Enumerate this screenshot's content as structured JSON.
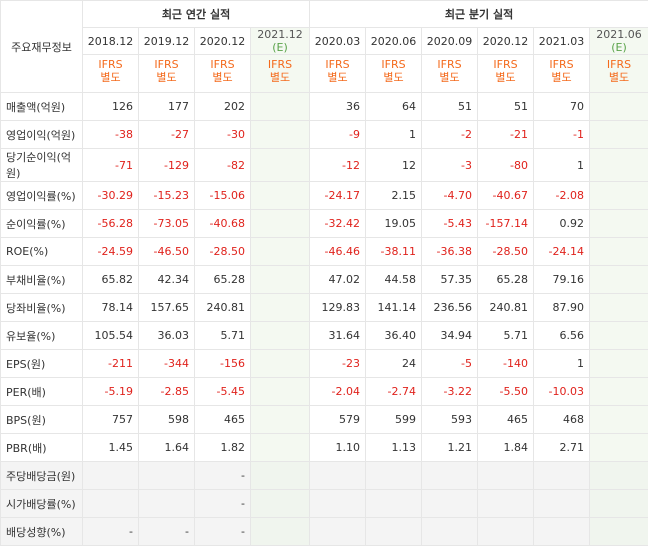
{
  "header": {
    "row_title": "주요재무정보",
    "annual_title": "최근 연간 실적",
    "quarter_title": "최근 분기 실적",
    "ifrs_top": "IFRS",
    "ifrs_bottom": "별도",
    "annual_periods": [
      "2018.12",
      "2019.12",
      "2020.12",
      "2021.12"
    ],
    "quarter_periods": [
      "2020.03",
      "2020.06",
      "2020.09",
      "2020.12",
      "2021.03",
      "2021.06"
    ],
    "estimate_mark": "(E)"
  },
  "rows": [
    {
      "label": "매출액(억원)",
      "values": [
        "126",
        "177",
        "202",
        "",
        "36",
        "64",
        "51",
        "51",
        "70",
        ""
      ]
    },
    {
      "label": "영업이익(억원)",
      "values": [
        "-38",
        "-27",
        "-30",
        "",
        "-9",
        "1",
        "-2",
        "-21",
        "-1",
        ""
      ]
    },
    {
      "label": "당기순이익(억원)",
      "values": [
        "-71",
        "-129",
        "-82",
        "",
        "-12",
        "12",
        "-3",
        "-80",
        "1",
        ""
      ]
    },
    {
      "label": "영업이익률(%)",
      "values": [
        "-30.29",
        "-15.23",
        "-15.06",
        "",
        "-24.17",
        "2.15",
        "-4.70",
        "-40.67",
        "-2.08",
        ""
      ]
    },
    {
      "label": "순이익률(%)",
      "values": [
        "-56.28",
        "-73.05",
        "-40.68",
        "",
        "-32.42",
        "19.05",
        "-5.43",
        "-157.14",
        "0.92",
        ""
      ]
    },
    {
      "label": "ROE(%)",
      "values": [
        "-24.59",
        "-46.50",
        "-28.50",
        "",
        "-46.46",
        "-38.11",
        "-36.38",
        "-28.50",
        "-24.14",
        ""
      ]
    },
    {
      "label": "부채비율(%)",
      "values": [
        "65.82",
        "42.34",
        "65.28",
        "",
        "47.02",
        "44.58",
        "57.35",
        "65.28",
        "79.16",
        ""
      ]
    },
    {
      "label": "당좌비율(%)",
      "values": [
        "78.14",
        "157.65",
        "240.81",
        "",
        "129.83",
        "141.14",
        "236.56",
        "240.81",
        "87.90",
        ""
      ]
    },
    {
      "label": "유보율(%)",
      "values": [
        "105.54",
        "36.03",
        "5.71",
        "",
        "31.64",
        "36.40",
        "34.94",
        "5.71",
        "6.56",
        ""
      ]
    },
    {
      "label": "EPS(원)",
      "values": [
        "-211",
        "-344",
        "-156",
        "",
        "-23",
        "24",
        "-5",
        "-140",
        "1",
        ""
      ]
    },
    {
      "label": "PER(배)",
      "values": [
        "-5.19",
        "-2.85",
        "-5.45",
        "",
        "-2.04",
        "-2.74",
        "-3.22",
        "-5.50",
        "-10.03",
        ""
      ]
    },
    {
      "label": "BPS(원)",
      "values": [
        "757",
        "598",
        "465",
        "",
        "579",
        "599",
        "593",
        "465",
        "468",
        ""
      ]
    },
    {
      "label": "PBR(배)",
      "values": [
        "1.45",
        "1.64",
        "1.82",
        "",
        "1.10",
        "1.13",
        "1.21",
        "1.84",
        "2.71",
        ""
      ]
    },
    {
      "label": "주당배당금(원)",
      "values": [
        "",
        "",
        "-",
        "",
        "",
        "",
        "",
        "",
        "",
        ""
      ]
    },
    {
      "label": "시가배당률(%)",
      "values": [
        "",
        "",
        "-",
        "",
        "",
        "",
        "",
        "",
        "",
        ""
      ]
    },
    {
      "label": "배당성향(%)",
      "values": [
        "-",
        "-",
        "-",
        "",
        "",
        "",
        "",
        "",
        "",
        ""
      ]
    }
  ],
  "colors": {
    "negative": "#e0221c",
    "ifrs": "#f46a1c",
    "estimate_bg": "#f4f9f1",
    "estimate_mark": "#5aa34a"
  }
}
